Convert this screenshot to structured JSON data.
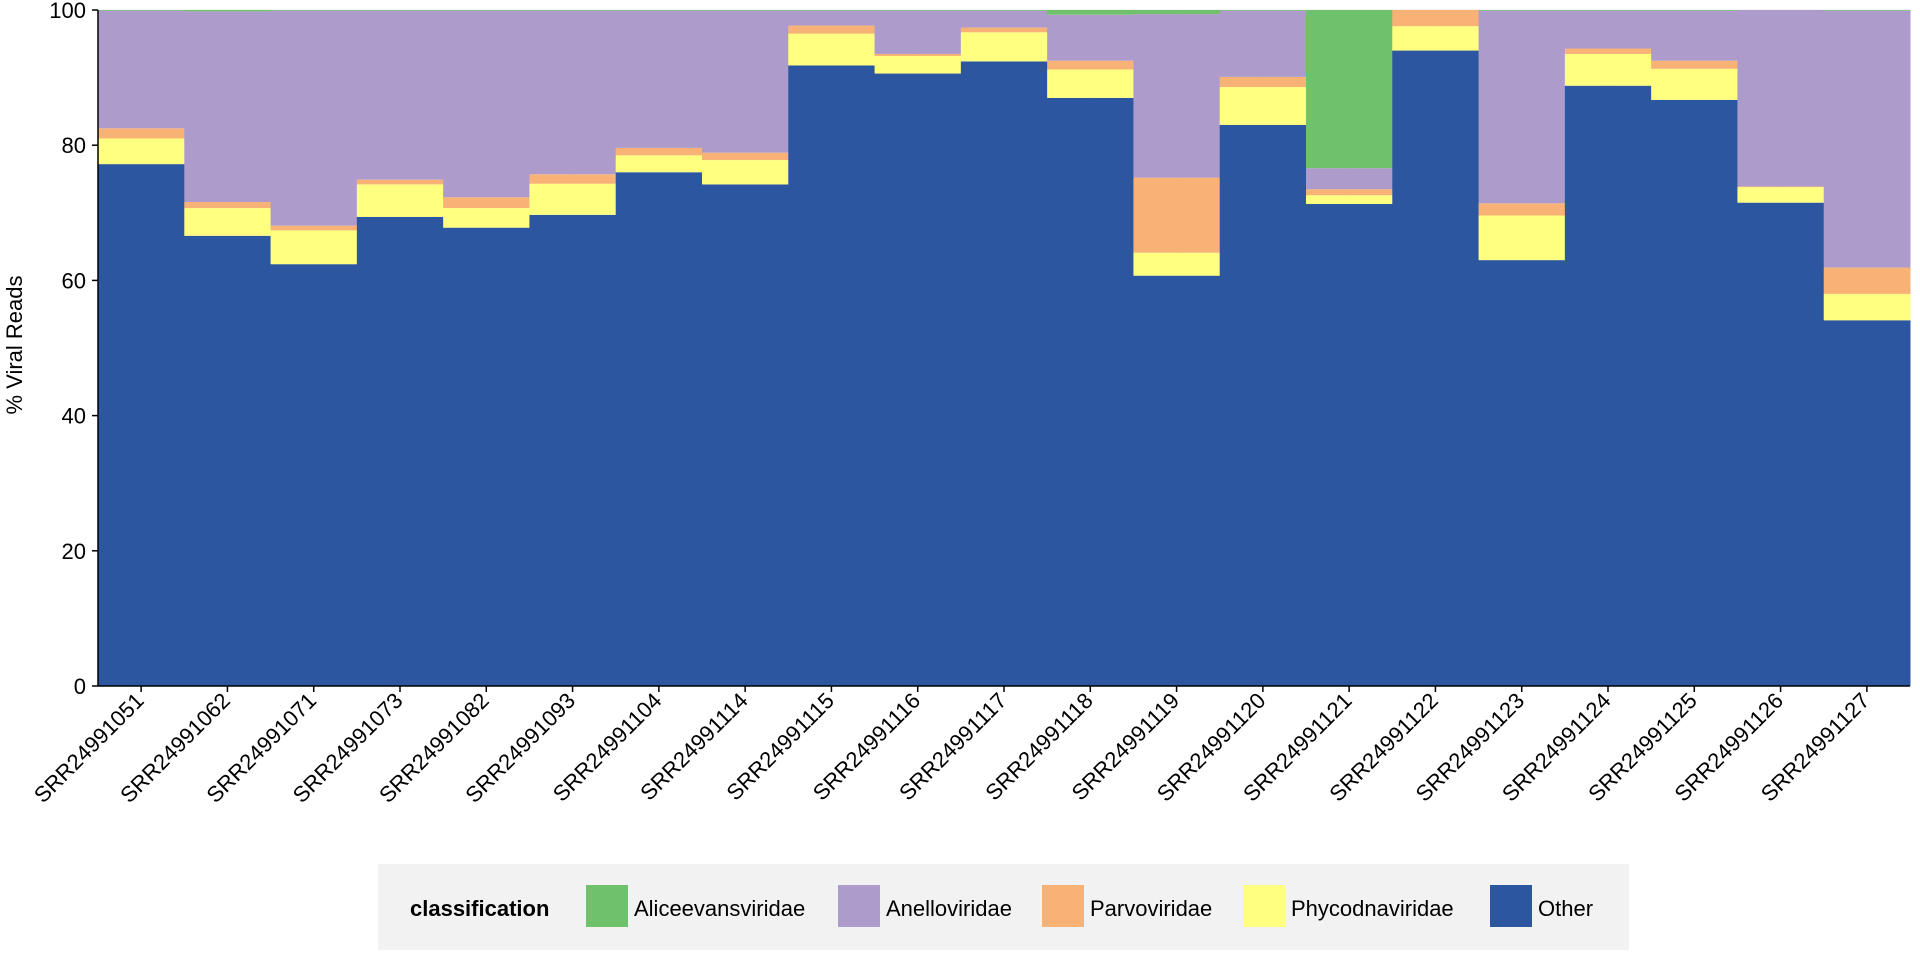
{
  "chart_data": {
    "type": "bar",
    "stacked": true,
    "ylabel": "% Viral Reads",
    "xlabel": "",
    "ylim": [
      0,
      100
    ],
    "yticks": [
      0,
      20,
      40,
      60,
      80,
      100
    ],
    "grid": true,
    "legend_position": "bottom",
    "legend_title": "classification",
    "categories": [
      "SRR24991051",
      "SRR24991062",
      "SRR24991071",
      "SRR24991073",
      "SRR24991082",
      "SRR24991093",
      "SRR24991104",
      "SRR24991114",
      "SRR24991115",
      "SRR24991116",
      "SRR24991117",
      "SRR24991118",
      "SRR24991119",
      "SRR24991120",
      "SRR24991121",
      "SRR24991122",
      "SRR24991123",
      "SRR24991124",
      "SRR24991125",
      "SRR24991126",
      "SRR24991127"
    ],
    "series": [
      {
        "name": "Other",
        "color": "#2c56a0",
        "values": [
          77.2,
          66.6,
          62.4,
          69.4,
          67.8,
          69.7,
          76.0,
          74.2,
          91.8,
          90.6,
          92.4,
          87.0,
          60.7,
          83.0,
          71.3,
          94.0,
          63.0,
          88.8,
          86.7,
          71.5,
          54.1
        ]
      },
      {
        "name": "Phycodnaviridae",
        "color": "#ffff80",
        "values": [
          3.8,
          4.1,
          5.0,
          4.8,
          2.9,
          4.6,
          2.5,
          3.6,
          4.7,
          2.6,
          4.3,
          4.2,
          3.4,
          5.6,
          1.3,
          3.6,
          6.6,
          4.7,
          4.6,
          2.3,
          3.9
        ]
      },
      {
        "name": "Parvoviridae",
        "color": "#f9b276",
        "values": [
          1.5,
          0.9,
          0.7,
          0.7,
          1.6,
          1.4,
          1.1,
          1.1,
          1.2,
          0.3,
          0.7,
          1.3,
          11.1,
          1.5,
          0.9,
          2.4,
          1.8,
          0.8,
          1.2,
          0.1,
          3.9
        ]
      },
      {
        "name": "Anelloviridae",
        "color": "#ad9ccb",
        "values": [
          17.4,
          28.2,
          31.8,
          25.0,
          27.6,
          24.2,
          20.3,
          21.0,
          2.2,
          6.4,
          2.5,
          6.8,
          24.2,
          9.8,
          3.1,
          0.0,
          28.5,
          5.6,
          7.4,
          26.1,
          38.0
        ]
      },
      {
        "name": "Aliceevansviridae",
        "color": "#70c16b",
        "values": [
          0.1,
          0.2,
          0.1,
          0.1,
          0.1,
          0.1,
          0.1,
          0.1,
          0.1,
          0.1,
          0.1,
          0.7,
          0.6,
          0.1,
          23.4,
          0.0,
          0.1,
          0.1,
          0.1,
          0.0,
          0.1
        ]
      }
    ],
    "legend_order": [
      "Aliceevansviridae",
      "Anelloviridae",
      "Parvoviridae",
      "Phycodnaviridae",
      "Other"
    ]
  }
}
